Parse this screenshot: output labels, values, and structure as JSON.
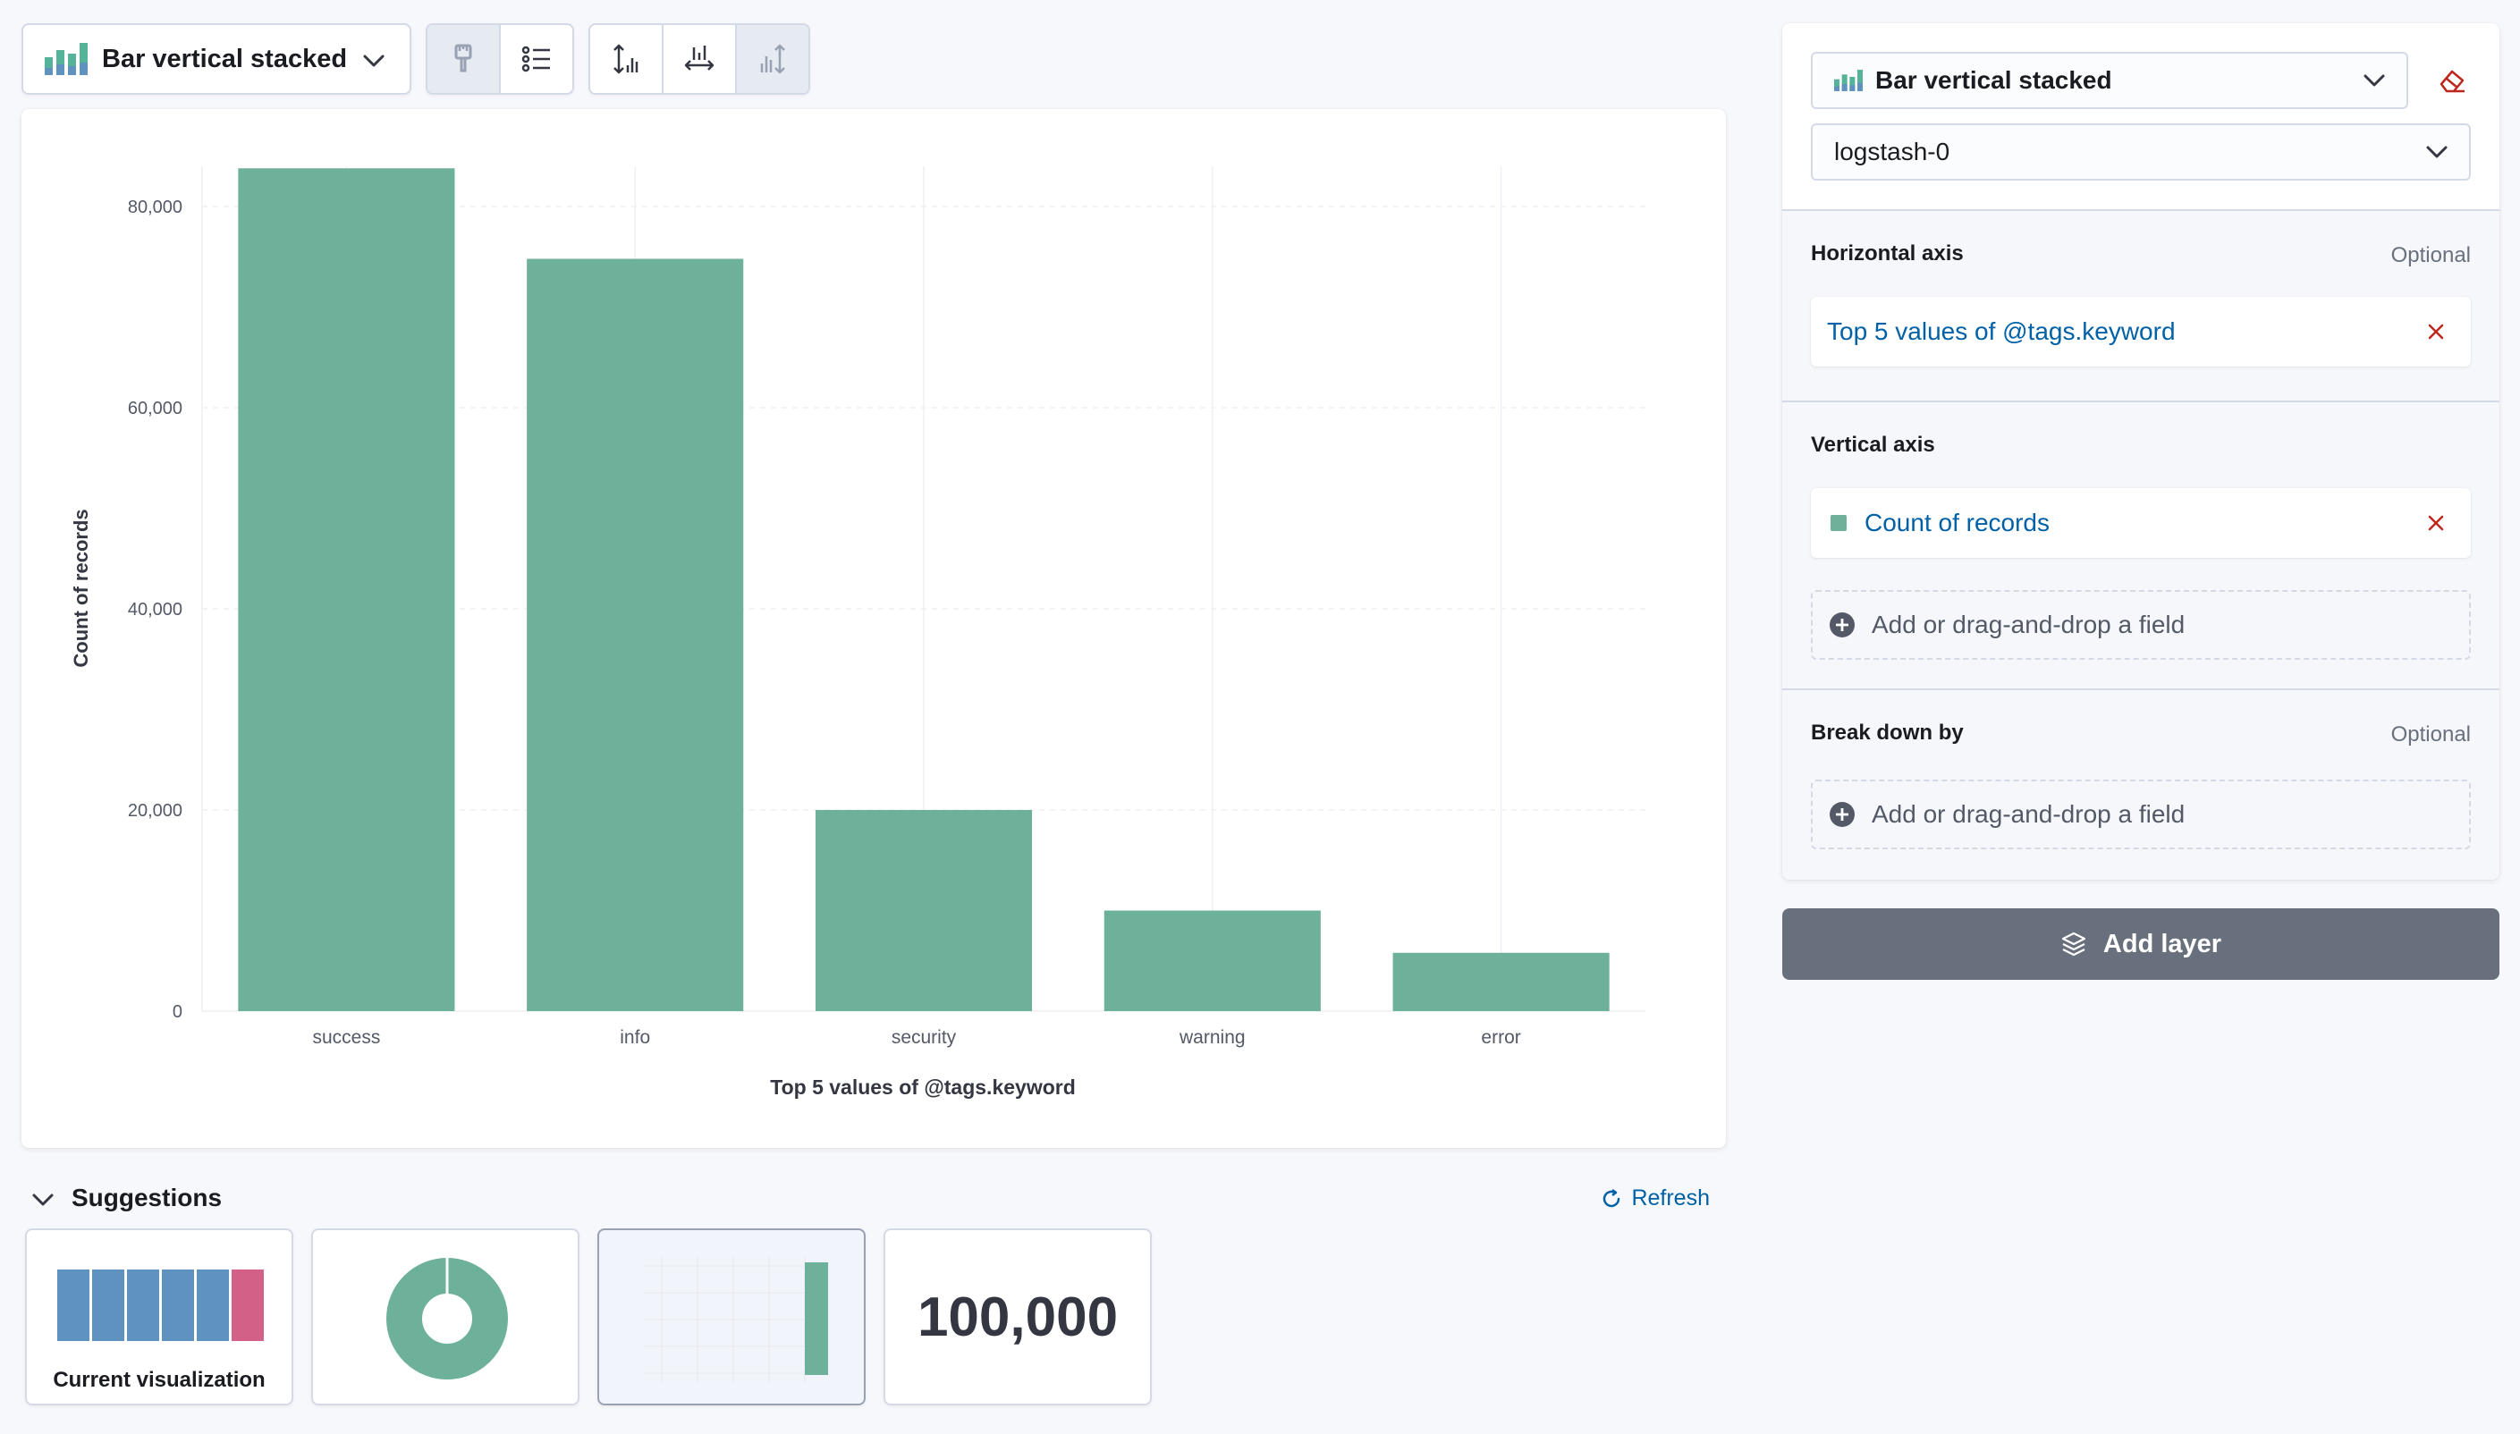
{
  "toolbar": {
    "chart_type_label": "Bar vertical stacked"
  },
  "chart_data": {
    "type": "bar",
    "categories": [
      "success",
      "info",
      "security",
      "warning",
      "error"
    ],
    "values": [
      83800,
      74800,
      20000,
      10000,
      5800
    ],
    "ylabel": "Count of records",
    "xlabel": "Top 5 values of @tags.keyword",
    "ylim": [
      0,
      84000
    ],
    "yticks": [
      0,
      20000,
      40000,
      60000,
      80000
    ],
    "ytick_labels": [
      "0",
      "20,000",
      "40,000",
      "60,000",
      "80,000"
    ],
    "grid": true,
    "color": "#6db19a"
  },
  "suggestions": {
    "title": "Suggestions",
    "refresh_label": "Refresh",
    "cards": [
      {
        "label": "Current visualization"
      },
      {
        "label": ""
      },
      {
        "label": ""
      },
      {
        "label": "100,000"
      }
    ]
  },
  "config": {
    "layer_type_label": "Bar vertical stacked",
    "index_pattern": "logstash-0",
    "horizontal_axis": {
      "title": "Horizontal axis",
      "optional": "Optional",
      "dimension": "Top 5 values of @tags.keyword"
    },
    "vertical_axis": {
      "title": "Vertical axis",
      "dimension": "Count of records",
      "dimension_color": "#6db19a",
      "add_field": "Add or drag-and-drop a field"
    },
    "break_down_by": {
      "title": "Break down by",
      "optional": "Optional",
      "add_field": "Add or drag-and-drop a field"
    },
    "add_layer_label": "Add layer"
  }
}
